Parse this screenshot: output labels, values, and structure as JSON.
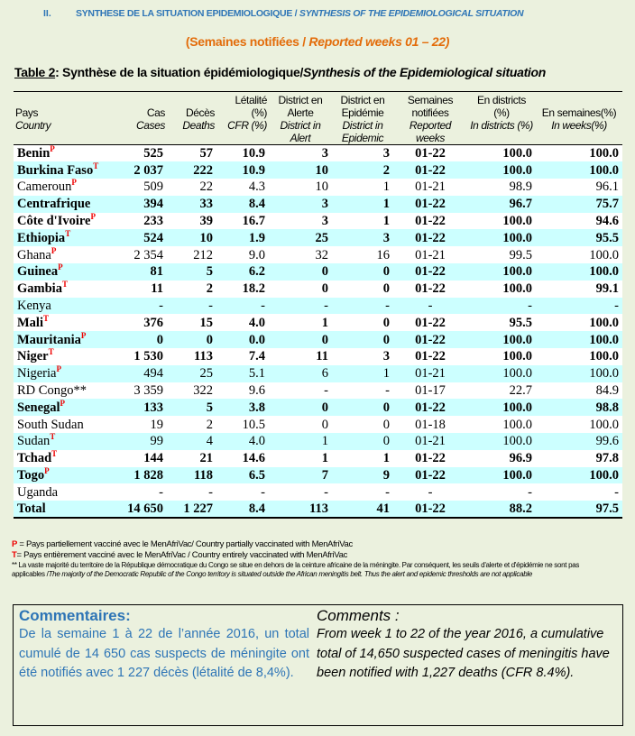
{
  "section": {
    "number": "II.",
    "title_fr": "SYNTHESE DE LA SITUATION EPIDEMIOLOGIQUE / ",
    "title_en": "SYNTHESIS OF THE EPIDEMIOLOGICAL SITUATION"
  },
  "weeks_line": {
    "fr": "(Semaines notifiées / ",
    "en": "Reported weeks 01 – 22)"
  },
  "table_title": {
    "label": "Table 2",
    "fr": ": Synthèse de la situation épidémiologique/",
    "en": "Synthesis of the Epidemiological situation"
  },
  "headers": {
    "fr": [
      "Pays",
      "Cas",
      "Décès",
      "Létalité (%)",
      "District en Alerte",
      "District en Epidémie",
      "Semaines notifiées",
      "En districts (%)",
      "En semaines(%)"
    ],
    "en": [
      "Country",
      "Cases",
      "Deaths",
      "CFR (%)",
      "District in Alert",
      "District in Epidemic",
      "Reported weeks",
      "In districts (%)",
      "In weeks(%)"
    ]
  },
  "rows": [
    {
      "country": "Benin",
      "mark": "P",
      "bold": true,
      "cells": [
        "525",
        "57",
        "10.9",
        "3",
        "3",
        "01-22",
        "100.0",
        "100.0"
      ]
    },
    {
      "country": "Burkina Faso",
      "mark": "T",
      "bold": true,
      "cells": [
        "2 037",
        "222",
        "10.9",
        "10",
        "2",
        "01-22",
        "100.0",
        "100.0"
      ]
    },
    {
      "country": "Cameroun",
      "mark": "P",
      "bold": false,
      "cells": [
        "509",
        "22",
        "4.3",
        "10",
        "1",
        "01-21",
        "98.9",
        "96.1"
      ]
    },
    {
      "country": "Centrafrique",
      "mark": "",
      "bold": true,
      "cells": [
        "394",
        "33",
        "8.4",
        "3",
        "1",
        "01-22",
        "96.7",
        "75.7"
      ]
    },
    {
      "country": "Côte d'Ivoire",
      "mark": "P",
      "bold": true,
      "cells": [
        "233",
        "39",
        "16.7",
        "3",
        "1",
        "01-22",
        "100.0",
        "94.6"
      ]
    },
    {
      "country": "Ethiopia",
      "mark": "T",
      "bold": true,
      "cells": [
        "524",
        "10",
        "1.9",
        "25",
        "3",
        "01-22",
        "100.0",
        "95.5"
      ]
    },
    {
      "country": "Ghana",
      "mark": "P",
      "bold": false,
      "cells": [
        "2 354",
        "212",
        "9.0",
        "32",
        "16",
        "01-21",
        "99.5",
        "100.0"
      ]
    },
    {
      "country": "Guinea",
      "mark": "P",
      "bold": true,
      "cells": [
        "81",
        "5",
        "6.2",
        "0",
        "0",
        "01-22",
        "100.0",
        "100.0"
      ]
    },
    {
      "country": "Gambia",
      "mark": "T",
      "bold": true,
      "cells": [
        "11",
        "2",
        "18.2",
        "0",
        "0",
        "01-22",
        "100.0",
        "99.1"
      ]
    },
    {
      "country": "Kenya",
      "mark": "",
      "bold": false,
      "cells": [
        "-",
        "-",
        "-",
        "-",
        "-",
        "-",
        "-",
        "-"
      ]
    },
    {
      "country": "Mali",
      "mark": "T",
      "bold": true,
      "cells": [
        "376",
        "15",
        "4.0",
        "1",
        "0",
        "01-22",
        "95.5",
        "100.0"
      ]
    },
    {
      "country": "Mauritania",
      "mark": "P",
      "bold": true,
      "cells": [
        "0",
        "0",
        "0.0",
        "0",
        "0",
        "01-22",
        "100.0",
        "100.0"
      ]
    },
    {
      "country": "Niger",
      "mark": "T",
      "bold": true,
      "cells": [
        "1 530",
        "113",
        "7.4",
        "11",
        "3",
        "01-22",
        "100.0",
        "100.0"
      ]
    },
    {
      "country": "Nigeria",
      "mark": "P",
      "bold": false,
      "cells": [
        "494",
        "25",
        "5.1",
        "6",
        "1",
        "01-21",
        "100.0",
        "100.0"
      ]
    },
    {
      "country": "RD Congo**",
      "mark": "",
      "bold": false,
      "cells": [
        "3 359",
        "322",
        "9.6",
        "-",
        "-",
        "01-17",
        "22.7",
        "84.9"
      ]
    },
    {
      "country": "Senegal",
      "mark": "P",
      "bold": true,
      "cells": [
        "133",
        "5",
        "3.8",
        "0",
        "0",
        "01-22",
        "100.0",
        "98.8"
      ]
    },
    {
      "country": "South Sudan",
      "mark": "",
      "bold": false,
      "cells": [
        "19",
        "2",
        "10.5",
        "0",
        "0",
        "01-18",
        "100.0",
        "100.0"
      ]
    },
    {
      "country": "Sudan",
      "mark": "T",
      "bold": false,
      "cells": [
        "99",
        "4",
        "4.0",
        "1",
        "0",
        "01-21",
        "100.0",
        "99.6"
      ]
    },
    {
      "country": "Tchad",
      "mark": "T",
      "bold": true,
      "cells": [
        "144",
        "21",
        "14.6",
        "1",
        "1",
        "01-22",
        "96.9",
        "97.8"
      ]
    },
    {
      "country": "Togo",
      "mark": "P",
      "bold": true,
      "cells": [
        "1 828",
        "118",
        "6.5",
        "7",
        "9",
        "01-22",
        "100.0",
        "100.0"
      ]
    },
    {
      "country": "Uganda",
      "mark": "",
      "bold": false,
      "cells": [
        "-",
        "-",
        "-",
        "-",
        "-",
        "-",
        "-",
        "-"
      ]
    },
    {
      "country": "Total",
      "mark": "",
      "bold": true,
      "cells": [
        "14 650",
        "1 227",
        "8.4",
        "113",
        "41",
        "01-22",
        "88.2",
        "97.5"
      ]
    }
  ],
  "notes": {
    "p_key": "P",
    "p_text": " = Pays partiellement vacciné avec le MenAfriVac/ Country partially  vaccinated with MenAfriVac",
    "t_key": "T",
    "t_text": "= Pays entièrement vacciné avec le MenAfriVac / Country entirely  vaccinated with MenAfriVac",
    "star_fr": "** La vaste majorité du territoire de la République démocratique du Congo se situe en dehors de la ceinture africaine de la méningite. Par conséquent, les seuils d'alerte et d'épidémie ne sont pas applicables /",
    "star_en": "The majority of the Democratic Republic of the Congo territory is situated outside the African meningitis belt. Thus the alert and epidemic thresholds are not applicable"
  },
  "comments": {
    "fr_title": "Commentaires:",
    "fr_text": "De la semaine 1 à 22 de l’année 2016, un total cumulé de 14 650 cas suspects de méningite ont été notifiés avec 1 227 décès (létalité de 8,4%).",
    "en_title": "Comments :",
    "en_text": "From week 1 to 22 of the year 2016, a cumulative total of 14,650 suspected cases of meningitis have been notified with 1,227 deaths (CFR 8.4%)."
  },
  "colors": {
    "heading_blue": "#2e75b6",
    "orange": "#e36c0a",
    "row_alt": "#ccffff",
    "marker_red": "#ee0000",
    "page_bg": "#ebf1de"
  }
}
